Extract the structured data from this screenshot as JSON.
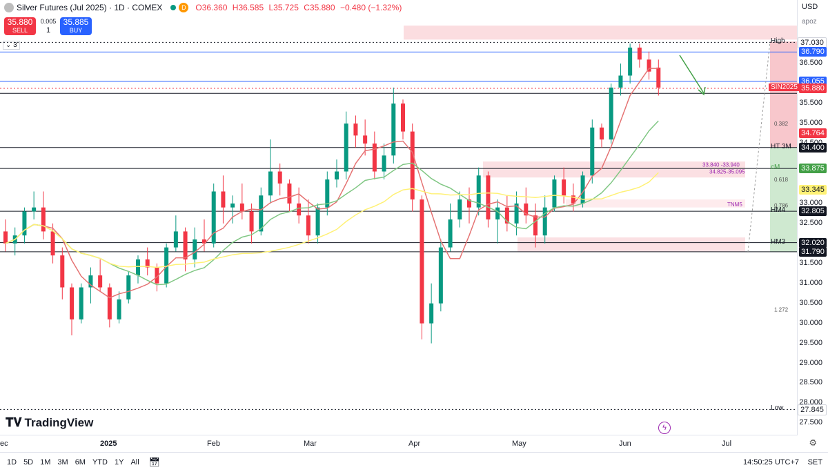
{
  "header": {
    "symbol_title": "Silver Futures (Jul 2025) · 1D · COMEX",
    "open": "O36.360",
    "high": "H36.585",
    "low": "L35.725",
    "close": "C35.880",
    "change": "−0.480 (−1.32%)",
    "sell_price": "35.880",
    "sell_label": "SELL",
    "spread": "0.005",
    "qty": "1",
    "buy_price": "35.885",
    "buy_label": "BUY",
    "indicator_count": "3",
    "status_letter": "D"
  },
  "axis_controls": {
    "currency": "USD",
    "scale_mode": "apoz"
  },
  "price_ticks": [
    "37.000",
    "36.500",
    "35.500",
    "35.000",
    "34.500",
    "33.000",
    "32.500",
    "31.500",
    "31.000",
    "30.500",
    "30.000",
    "29.500",
    "29.000",
    "28.500",
    "28.000",
    "27.500"
  ],
  "price_tags": [
    {
      "label": "High",
      "value": "37.030",
      "color": "#ffffff",
      "text": "#131722"
    },
    {
      "label": "",
      "value": "36.790",
      "color": "#2962ff",
      "text": "#ffffff"
    },
    {
      "label": "",
      "value": "36.055",
      "color": "#2962ff",
      "text": "#ffffff"
    },
    {
      "label": "SIN2025",
      "value": "35.880",
      "color": "#f23645",
      "text": "#ffffff"
    },
    {
      "label": "",
      "value": "34.764",
      "color": "#f23645",
      "text": "#ffffff"
    },
    {
      "label": "HT 3M",
      "value": "34.400",
      "color": "#131722",
      "text": "#ffffff"
    },
    {
      "label": "cM",
      "value": "33.875",
      "color": "#43a047",
      "text": "#ffffff"
    },
    {
      "label": "",
      "value": "33.345",
      "color": "#fff176",
      "text": "#131722"
    },
    {
      "label": "HM4",
      "value": "32.805",
      "color": "#131722",
      "text": "#ffffff"
    },
    {
      "label": "HM3",
      "value": "32.020",
      "color": "#131722",
      "text": "#ffffff"
    },
    {
      "label": "",
      "value": "31.790",
      "color": "#131722",
      "text": "#ffffff"
    },
    {
      "label": "Low",
      "value": "27.845",
      "color": "#ffffff",
      "text": "#131722"
    }
  ],
  "annotations": {
    "fib_382": "0.382",
    "fib_618": "0.618",
    "fib_786": "0.786",
    "fib_1272": "1.272",
    "zone_1": "33.840 -33.940",
    "zone_2": "34.825-35.095",
    "tnm": "TNM5"
  },
  "time_labels": [
    "ec",
    "2025",
    "Feb",
    "Mar",
    "Apr",
    "May",
    "Jun",
    "Jul"
  ],
  "bottom": {
    "ranges": [
      "1D",
      "5D",
      "1M",
      "3M",
      "6M",
      "YTD",
      "1Y",
      "All"
    ],
    "clock": "14:50:25 UTC+7",
    "session": "SET"
  },
  "brand": "TradingView",
  "colors": {
    "up": "#089981",
    "down": "#f23645",
    "ma_fast": "#e57373",
    "ma_mid": "#81c784",
    "ma_slow": "#fff176"
  },
  "chart_data": {
    "type": "candlestick",
    "title": "Silver Futures (Jul 2025) · 1D · COMEX",
    "ylim": [
      27.3,
      37.4
    ],
    "x_range": [
      "2024-12-26",
      "2025-06-12"
    ],
    "series_ohlc_approx": [
      [
        32.3,
        32.6,
        31.8,
        32.0
      ],
      [
        32.0,
        32.4,
        31.7,
        32.2
      ],
      [
        32.2,
        32.9,
        32.0,
        32.8
      ],
      [
        32.8,
        33.3,
        32.6,
        32.9
      ],
      [
        32.9,
        33.3,
        32.1,
        32.3
      ],
      [
        32.3,
        32.5,
        31.5,
        31.7
      ],
      [
        31.7,
        31.9,
        30.6,
        30.9
      ],
      [
        30.9,
        31.0,
        29.7,
        30.1
      ],
      [
        30.1,
        31.0,
        30.0,
        30.9
      ],
      [
        30.9,
        31.4,
        30.5,
        31.2
      ],
      [
        31.2,
        31.6,
        30.8,
        30.9
      ],
      [
        30.9,
        31.0,
        29.9,
        30.1
      ],
      [
        30.1,
        30.8,
        30.0,
        30.6
      ],
      [
        30.6,
        31.3,
        30.5,
        31.2
      ],
      [
        31.2,
        31.7,
        31.0,
        31.6
      ],
      [
        31.6,
        31.9,
        31.2,
        31.4
      ],
      [
        31.4,
        31.5,
        30.8,
        31.0
      ],
      [
        31.0,
        32.0,
        30.9,
        31.9
      ],
      [
        31.9,
        32.7,
        31.8,
        32.3
      ],
      [
        32.3,
        32.4,
        31.3,
        31.6
      ],
      [
        31.6,
        32.4,
        31.4,
        32.1
      ],
      [
        32.1,
        32.6,
        31.8,
        32.0
      ],
      [
        32.0,
        33.5,
        31.9,
        33.3
      ],
      [
        33.3,
        33.7,
        32.5,
        32.9
      ],
      [
        32.9,
        33.2,
        32.5,
        33.0
      ],
      [
        33.0,
        33.5,
        32.6,
        32.8
      ],
      [
        32.8,
        33.0,
        32.0,
        32.3
      ],
      [
        32.3,
        33.4,
        32.2,
        33.2
      ],
      [
        33.2,
        34.6,
        33.0,
        33.8
      ],
      [
        33.8,
        34.0,
        33.2,
        33.5
      ],
      [
        33.5,
        33.6,
        32.8,
        33.0
      ],
      [
        33.0,
        33.4,
        32.5,
        32.7
      ],
      [
        32.7,
        33.1,
        32.0,
        32.2
      ],
      [
        32.2,
        33.0,
        32.0,
        32.9
      ],
      [
        32.9,
        33.8,
        32.7,
        33.6
      ],
      [
        33.6,
        34.1,
        33.4,
        33.8
      ],
      [
        33.8,
        35.3,
        33.6,
        35.0
      ],
      [
        35.0,
        35.2,
        34.4,
        34.7
      ],
      [
        34.7,
        35.1,
        34.2,
        34.5
      ],
      [
        34.5,
        34.8,
        33.6,
        33.8
      ],
      [
        33.8,
        34.5,
        33.6,
        34.2
      ],
      [
        34.2,
        35.9,
        34.0,
        35.5
      ],
      [
        35.5,
        35.6,
        34.6,
        34.8
      ],
      [
        34.8,
        35.0,
        32.8,
        33.1
      ],
      [
        33.1,
        33.2,
        29.6,
        30.0
      ],
      [
        30.0,
        31.0,
        29.5,
        30.5
      ],
      [
        30.5,
        32.1,
        30.3,
        31.9
      ],
      [
        31.9,
        33.0,
        31.8,
        32.6
      ],
      [
        32.6,
        33.3,
        32.4,
        33.1
      ],
      [
        33.1,
        33.4,
        32.5,
        32.9
      ],
      [
        32.9,
        33.9,
        32.7,
        33.7
      ],
      [
        33.7,
        33.8,
        32.4,
        32.6
      ],
      [
        32.6,
        33.1,
        32.0,
        32.9
      ],
      [
        32.9,
        33.2,
        32.3,
        32.5
      ],
      [
        32.5,
        33.3,
        32.2,
        33.0
      ],
      [
        33.0,
        33.4,
        32.5,
        32.7
      ],
      [
        32.7,
        33.0,
        31.9,
        32.2
      ],
      [
        32.2,
        33.2,
        32.0,
        32.9
      ],
      [
        32.9,
        33.7,
        32.8,
        33.6
      ],
      [
        33.6,
        33.9,
        33.0,
        33.2
      ],
      [
        33.2,
        33.5,
        32.8,
        33.0
      ],
      [
        33.0,
        33.8,
        32.9,
        33.7
      ],
      [
        33.7,
        35.1,
        33.5,
        34.9
      ],
      [
        34.9,
        35.0,
        34.4,
        34.6
      ],
      [
        34.6,
        36.0,
        34.5,
        35.9
      ],
      [
        35.9,
        36.5,
        35.7,
        36.2
      ],
      [
        36.2,
        37.0,
        36.0,
        36.9
      ],
      [
        36.9,
        37.0,
        36.4,
        36.6
      ],
      [
        36.6,
        36.8,
        36.1,
        36.3
      ],
      [
        36.4,
        36.6,
        35.7,
        35.9
      ]
    ],
    "moving_averages": [
      {
        "name": "MA fast",
        "color": "#e57373",
        "last": 34.764
      },
      {
        "name": "MA mid",
        "color": "#81c784",
        "last": 33.875
      },
      {
        "name": "MA slow",
        "color": "#fff176",
        "last": 33.345
      }
    ],
    "horizontal_levels": [
      37.03,
      36.79,
      36.055,
      35.88,
      35.755,
      34.4,
      33.875,
      32.805,
      32.02,
      31.79,
      27.845
    ]
  }
}
